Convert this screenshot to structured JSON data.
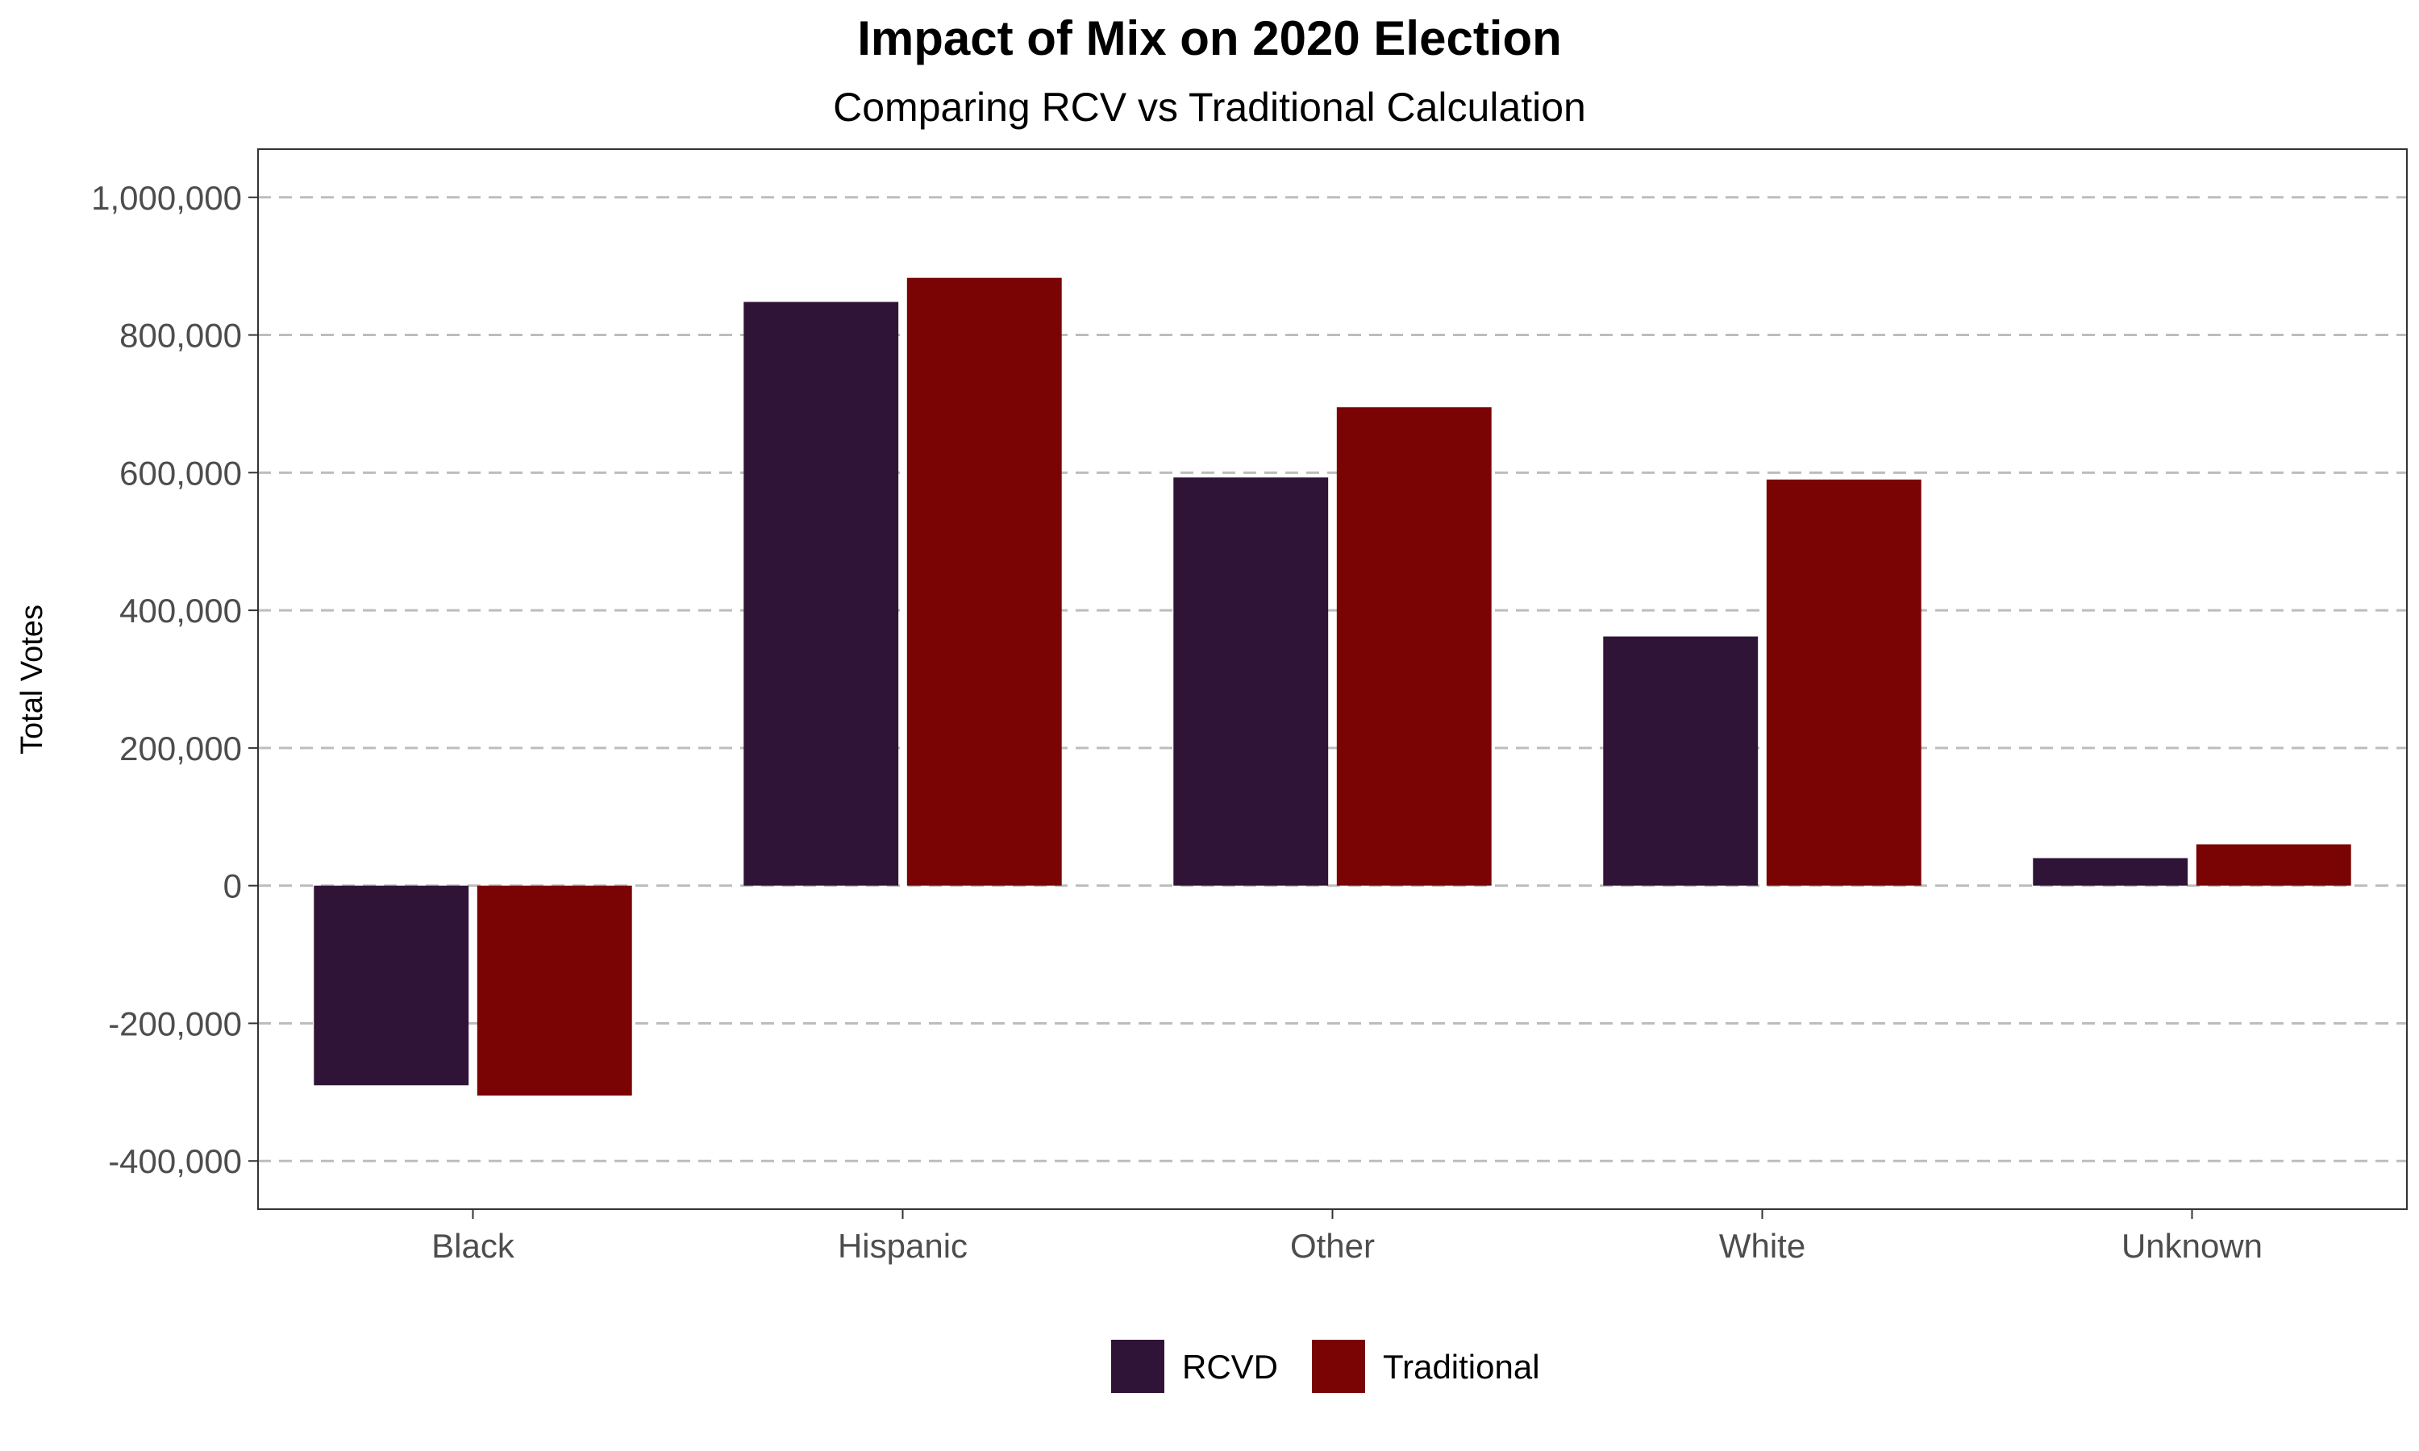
{
  "chart_data": {
    "type": "bar",
    "title": "Impact of Mix on 2020 Election",
    "subtitle": "Comparing RCV vs Traditional Calculation",
    "xlabel": "",
    "ylabel": "Total Votes",
    "categories": [
      "Black",
      "Hispanic",
      "Other",
      "White",
      "Unknown"
    ],
    "series": [
      {
        "name": "RCVD",
        "color": "#301437",
        "values": [
          -290000,
          848000,
          593000,
          362000,
          40000
        ]
      },
      {
        "name": "Traditional",
        "color": "#7a0403",
        "values": [
          -305000,
          883000,
          695000,
          590000,
          60000
        ]
      }
    ],
    "ylim": [
      -470000,
      1070000
    ],
    "yticks": [
      -400000,
      -200000,
      0,
      200000,
      400000,
      600000,
      800000,
      1000000
    ],
    "ytick_labels": [
      "-400,000",
      "-200,000",
      "0",
      "200,000",
      "400,000",
      "600,000",
      "800,000",
      "1,000,000"
    ],
    "grid": "horizontal-dashed",
    "legend_position": "bottom"
  }
}
